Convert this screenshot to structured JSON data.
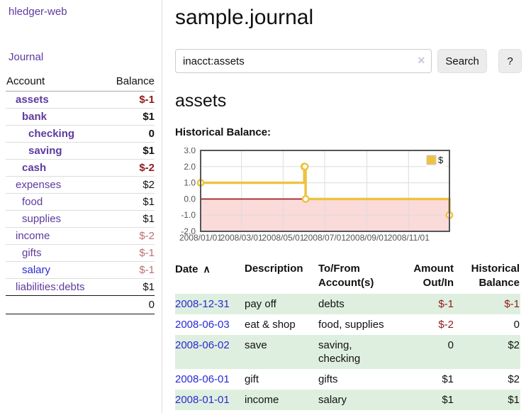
{
  "colors": {
    "link_purple": "#5e3a9e",
    "link_blue": "#2929d6",
    "negative_strong": "#8f1b1b",
    "negative_muted": "#bc6f72",
    "row_green": "#dfefdf",
    "button_bg": "#ececec",
    "chart_line": "#edc240"
  },
  "sidebar": {
    "brand": "hledger-web",
    "nav_journal": "Journal",
    "accounts_table": {
      "headers": [
        "Account",
        "Balance"
      ],
      "rows": [
        {
          "name": "assets",
          "indent": 1,
          "bold": true,
          "balance": "$-1",
          "balance_style": "negative-strong"
        },
        {
          "name": "bank",
          "indent": 2,
          "bold": true,
          "balance": "$1",
          "balance_style": "normal"
        },
        {
          "name": "checking",
          "indent": 3,
          "bold": true,
          "balance": "0",
          "balance_style": "normal"
        },
        {
          "name": "saving",
          "indent": 3,
          "bold": true,
          "balance": "$1",
          "balance_style": "normal"
        },
        {
          "name": "cash",
          "indent": 2,
          "bold": true,
          "balance": "$-2",
          "balance_style": "negative-strong"
        },
        {
          "name": "expenses",
          "indent": 1,
          "bold": false,
          "balance": "$2",
          "balance_style": "normal"
        },
        {
          "name": "food",
          "indent": 2,
          "bold": false,
          "balance": "$1",
          "balance_style": "normal"
        },
        {
          "name": "supplies",
          "indent": 2,
          "bold": false,
          "balance": "$1",
          "balance_style": "normal"
        },
        {
          "name": "income",
          "indent": 1,
          "bold": false,
          "balance": "$-2",
          "balance_style": "negative-muted"
        },
        {
          "name": "gifts",
          "indent": 2,
          "bold": false,
          "balance": "$-1",
          "balance_style": "negative-muted"
        },
        {
          "name": "salary",
          "indent": 2,
          "bold": false,
          "link_style": "unvisited",
          "balance": "$-1",
          "balance_style": "negative-muted"
        },
        {
          "name": "liabilities:debts",
          "indent": 1,
          "bold": false,
          "balance": "$1",
          "balance_style": "normal"
        }
      ],
      "total": "0"
    }
  },
  "header": {
    "title": "sample.journal"
  },
  "search": {
    "value": "inacct:assets",
    "clear_icon": "✕",
    "button_label": "Search",
    "help_label": "?"
  },
  "account_page": {
    "heading": "assets"
  },
  "chart_data": {
    "type": "line",
    "step": true,
    "title": "Historical Balance:",
    "series": [
      {
        "name": "$",
        "color": "#edc240",
        "points": [
          [
            "2008-01-01",
            1
          ],
          [
            "2008-06-01",
            2
          ],
          [
            "2008-06-02",
            2
          ],
          [
            "2008-06-03",
            0
          ],
          [
            "2008-12-31",
            -1
          ]
        ]
      }
    ],
    "xlim": [
      "2008-01-01",
      "2008-12-31"
    ],
    "ylim": [
      -2,
      3
    ],
    "x_ticks": [
      "2008/01/01",
      "2008/03/01",
      "2008/05/01",
      "2008/07/01",
      "2008/09/01",
      "2008/11/01"
    ],
    "y_ticks": [
      "3.0",
      "2.0",
      "1.0",
      "0.0",
      "-1.0",
      "-2.0"
    ],
    "grid": true,
    "grid_color": "#dcdcdc",
    "negative_region_color": "#fbdada",
    "zero_line_color": "#9d1111",
    "legend_position": "top-right"
  },
  "register": {
    "sort_icon": "∧",
    "headers": [
      "Date",
      "Description",
      "To/From Account(s)",
      "Amount Out/In",
      "Historical Balance"
    ],
    "rows": [
      {
        "date": "2008-12-31",
        "description": "pay off",
        "accounts": "debts",
        "amount": "$-1",
        "balance": "$-1"
      },
      {
        "date": "2008-06-03",
        "description": "eat & shop",
        "accounts": "food, supplies",
        "amount": "$-2",
        "balance": "0"
      },
      {
        "date": "2008-06-02",
        "description": "save",
        "accounts": "saving,\nchecking",
        "amount": "0",
        "balance": "$2"
      },
      {
        "date": "2008-06-01",
        "description": "gift",
        "accounts": "gifts",
        "amount": "$1",
        "balance": "$2"
      },
      {
        "date": "2008-01-01",
        "description": "income",
        "accounts": "salary",
        "amount": "$1",
        "balance": "$1"
      }
    ]
  }
}
